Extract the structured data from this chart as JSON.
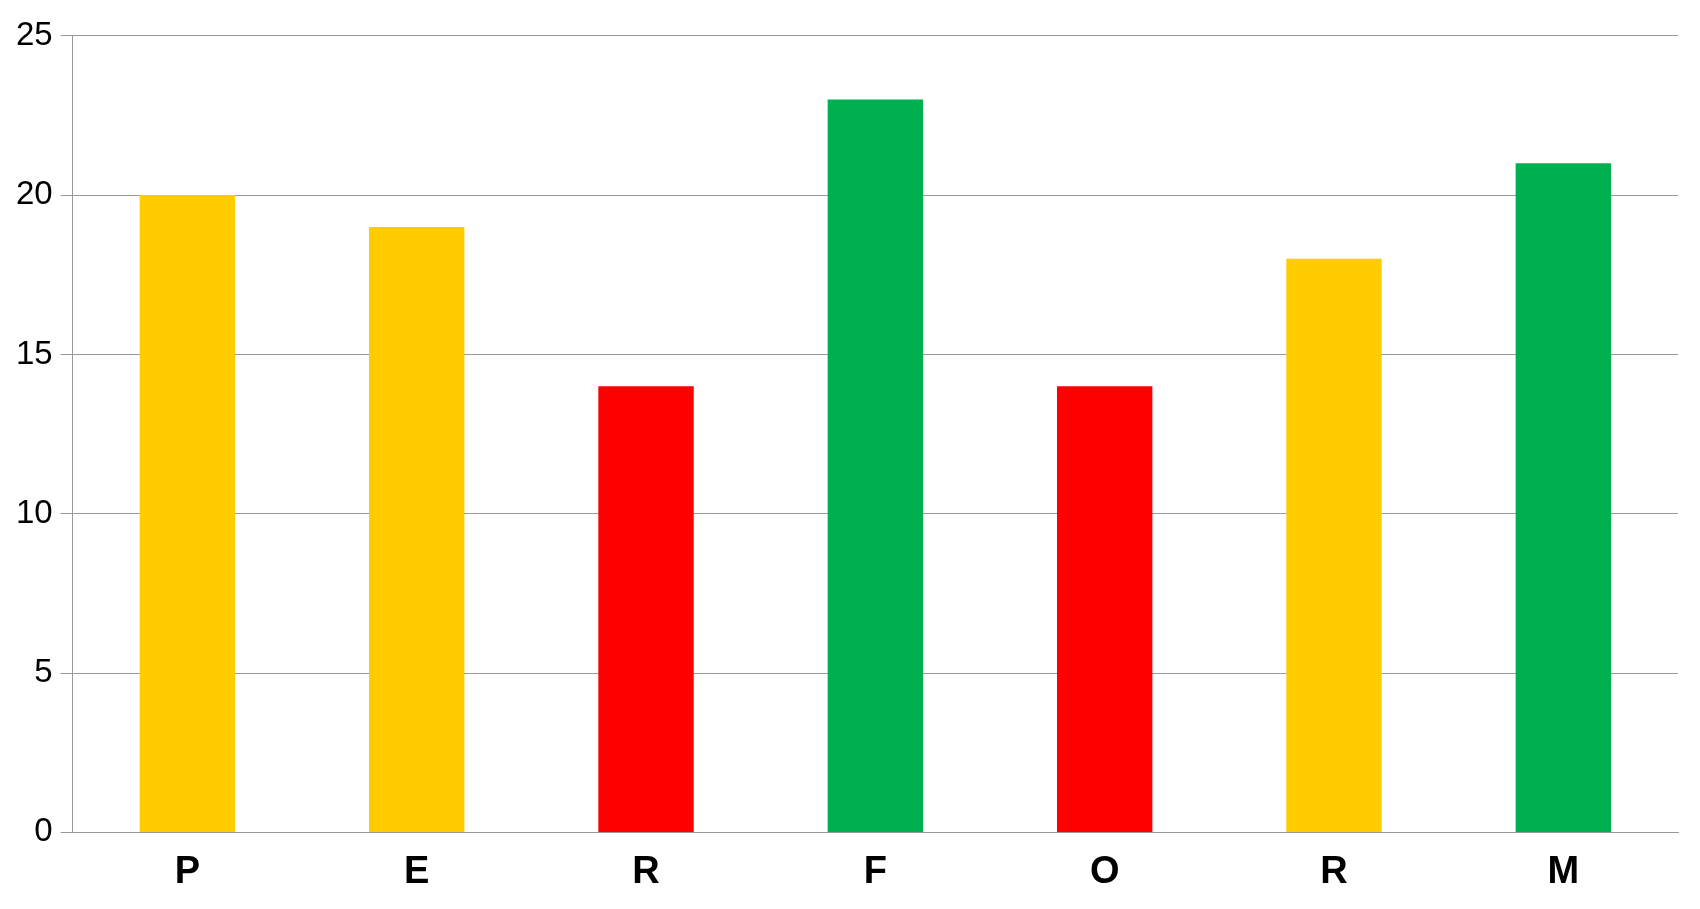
{
  "chart_data": {
    "type": "bar",
    "categories": [
      "P",
      "E",
      "R",
      "F",
      "O",
      "R",
      "M"
    ],
    "values": [
      20,
      19,
      14,
      23,
      14,
      18,
      21
    ],
    "colors": [
      "#ffcc00",
      "#ffcc00",
      "#ff0000",
      "#00b050",
      "#ff0000",
      "#ffcc00",
      "#00b050"
    ],
    "ylim": [
      0,
      25
    ],
    "yticks": [
      0,
      5,
      10,
      15,
      20,
      25
    ],
    "grid": "y",
    "legend": false
  }
}
